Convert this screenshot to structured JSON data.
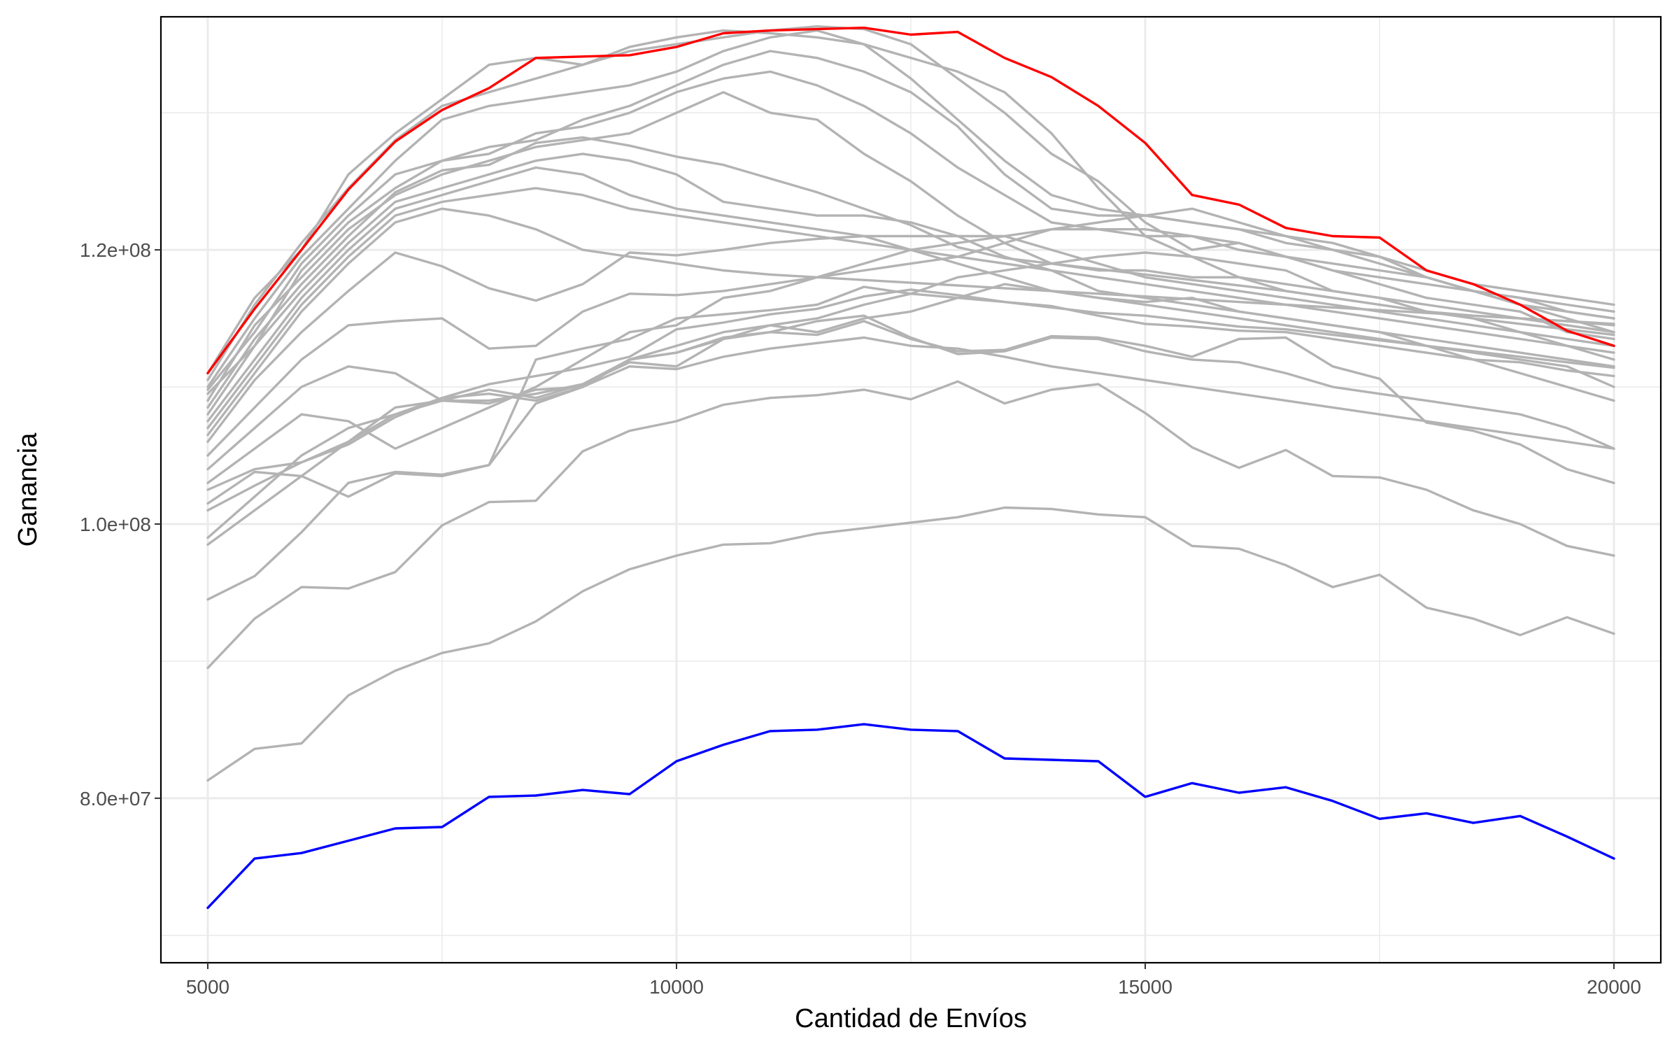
{
  "chart_data": {
    "type": "line",
    "title": "",
    "xlabel": "Cantidad de Envíos",
    "ylabel": "Ganancia",
    "xlim": [
      4500,
      20500
    ],
    "ylim": [
      68000000,
      137000000
    ],
    "x_ticks": [
      5000,
      10000,
      15000,
      20000
    ],
    "x_tick_labels": [
      "5000",
      "10000",
      "15000",
      "20000"
    ],
    "y_ticks": [
      80000000,
      100000000,
      120000000
    ],
    "y_tick_labels": [
      "8.0e+07",
      "1.0e+08",
      "1.2e+08"
    ],
    "y_minor_ticks": [
      70000000,
      90000000,
      110000000,
      130000000
    ],
    "grid": true,
    "legend": "none",
    "colors": {
      "background": "#ffffff",
      "grid": "#ebebeb",
      "frame": "#000000",
      "gray_series": "#b3b3b3",
      "best": "#ff0000",
      "worst": "#0000ff"
    },
    "x": [
      5000,
      5500,
      6000,
      6500,
      7000,
      7500,
      8000,
      8500,
      9000,
      9500,
      10000,
      10500,
      11000,
      11500,
      12000,
      12500,
      13000,
      13500,
      14000,
      14500,
      15000,
      15500,
      16000,
      16500,
      17000,
      17500,
      18000,
      18500,
      19000,
      19500,
      20000
    ],
    "series": [
      {
        "color": "#b3b3b3",
        "values": [
          111000000,
          116500000,
          120000000,
          125500000,
          128500000,
          131000000,
          133500000,
          134000000,
          133500000,
          134800000,
          135500000,
          136000000,
          135800000,
          135500000,
          135000000,
          134000000,
          133000000,
          131500000,
          128500000,
          124500000,
          121000000,
          119500000,
          118000000,
          117000000,
          116500000,
          116000000,
          115500000,
          115200000,
          115000000,
          114800000,
          114500000
        ]
      },
      {
        "color": "#b3b3b3",
        "values": [
          110500000,
          116000000,
          120500000,
          124500000,
          128000000,
          130500000,
          131500000,
          132500000,
          133500000,
          134500000,
          135000000,
          135500000,
          136000000,
          136300000,
          136100000,
          135000000,
          132500000,
          130000000,
          127000000,
          125000000,
          122000000,
          120000000,
          120500000,
          119500000,
          119000000,
          118500000,
          118000000,
          117000000,
          116000000,
          115500000,
          115000000
        ]
      },
      {
        "color": "#b3b3b3",
        "values": [
          110000000,
          115000000,
          119500000,
          123000000,
          126500000,
          129500000,
          130500000,
          131000000,
          131500000,
          132000000,
          133000000,
          134500000,
          135500000,
          136000000,
          135000000,
          132500000,
          129500000,
          126500000,
          124000000,
          123000000,
          122500000,
          122000000,
          121500000,
          121000000,
          120500000,
          119500000,
          118500000,
          117500000,
          117000000,
          116500000,
          116000000
        ]
      },
      {
        "color": "#b3b3b3",
        "values": [
          109800000,
          114000000,
          119000000,
          122500000,
          125500000,
          126500000,
          127500000,
          128000000,
          129500000,
          130500000,
          132000000,
          133500000,
          134500000,
          134000000,
          133000000,
          131500000,
          129000000,
          125500000,
          123000000,
          122500000,
          122500000,
          122000000,
          121500000,
          120500000,
          120000000,
          119000000,
          118000000,
          117000000,
          116000000,
          115000000,
          114000000
        ]
      },
      {
        "color": "#b3b3b3",
        "values": [
          109500000,
          113000000,
          118500000,
          122000000,
          124500000,
          126500000,
          127000000,
          128500000,
          129000000,
          130000000,
          131500000,
          132500000,
          133000000,
          132000000,
          130500000,
          128500000,
          126000000,
          124000000,
          122000000,
          121500000,
          121000000,
          121000000,
          120500000,
          119500000,
          118500000,
          118000000,
          117500000,
          117000000,
          116500000,
          116000000,
          115500000
        ]
      },
      {
        "color": "#b3b3b3",
        "values": [
          109000000,
          114500000,
          118000000,
          121500000,
          124000000,
          125500000,
          126500000,
          127500000,
          128000000,
          128500000,
          130000000,
          131500000,
          130000000,
          129500000,
          127000000,
          125000000,
          122500000,
          120500000,
          119000000,
          118500000,
          118500000,
          118000000,
          118000000,
          117500000,
          117000000,
          116500000,
          116000000,
          115500000,
          115000000,
          114500000,
          114000000
        ]
      },
      {
        "color": "#b3b3b3",
        "values": [
          108500000,
          113500000,
          117500000,
          121000000,
          124200000,
          125800000,
          126200000,
          127800000,
          128200000,
          127600000,
          126800000,
          126200000,
          125200000,
          124200000,
          123000000,
          121800000,
          120200000,
          119400000,
          119000000,
          118600000,
          118200000,
          117800000,
          117400000,
          117000000,
          116500000,
          116000000,
          115500000,
          115000000,
          114600000,
          114200000,
          113800000
        ]
      },
      {
        "color": "#b3b3b3",
        "values": [
          108000000,
          113000000,
          117000000,
          120500000,
          123500000,
          124500000,
          125500000,
          126500000,
          127000000,
          126500000,
          125500000,
          123500000,
          123000000,
          122500000,
          122500000,
          122000000,
          121000000,
          119500000,
          118500000,
          117000000,
          116500000,
          116000000,
          115500000,
          115000000,
          114500000,
          114000000,
          113500000,
          113000000,
          112500000,
          112000000,
          111500000
        ]
      },
      {
        "color": "#b3b3b3",
        "values": [
          107500000,
          112000000,
          116500000,
          120000000,
          123000000,
          124000000,
          125000000,
          126000000,
          125500000,
          124000000,
          123000000,
          122500000,
          122000000,
          121500000,
          121000000,
          120000000,
          119000000,
          118000000,
          117000000,
          116500000,
          116000000,
          115500000,
          115000000,
          114500000,
          114000000,
          113500000,
          113000000,
          112500000,
          112000000,
          111500000,
          110000000
        ]
      },
      {
        "color": "#b3b3b3",
        "values": [
          107000000,
          111500000,
          116000000,
          119500000,
          122500000,
          123500000,
          124000000,
          124500000,
          124000000,
          123000000,
          122500000,
          122000000,
          121500000,
          121000000,
          120500000,
          120000000,
          119500000,
          119000000,
          118500000,
          118000000,
          117500000,
          117000000,
          116500000,
          116000000,
          115500000,
          115000000,
          114500000,
          114000000,
          113500000,
          113000000,
          112500000
        ]
      },
      {
        "color": "#b3b3b3",
        "values": [
          106500000,
          111000000,
          115500000,
          119000000,
          122000000,
          123000000,
          122500000,
          121500000,
          120000000,
          119500000,
          119000000,
          118500000,
          118200000,
          118000000,
          117800000,
          117600000,
          117400000,
          117200000,
          117000000,
          116800000,
          116600000,
          116400000,
          116200000,
          116000000,
          115800000,
          115600000,
          115400000,
          115200000,
          115000000,
          114800000,
          114600000
        ]
      },
      {
        "color": "#b3b3b3",
        "values": [
          106000000,
          110500000,
          114000000,
          117000000,
          119800000,
          118800000,
          117200000,
          116300000,
          117500000,
          119800000,
          119600000,
          120000000,
          120500000,
          120800000,
          121000000,
          121000000,
          121000000,
          121000000,
          120000000,
          119000000,
          118000000,
          117500000,
          117000000,
          116500000,
          116000000,
          115500000,
          115000000,
          114500000,
          114000000,
          113500000,
          113000000
        ]
      },
      {
        "color": "#b3b3b3",
        "values": [
          105000000,
          108500000,
          112000000,
          114500000,
          114800000,
          115000000,
          112800000,
          113000000,
          115500000,
          116800000,
          116700000,
          117000000,
          117500000,
          118000000,
          118500000,
          119000000,
          119500000,
          120500000,
          121500000,
          122000000,
          122500000,
          123000000,
          122000000,
          121000000,
          120000000,
          119500000,
          118000000,
          117000000,
          116500000,
          115500000,
          115000000
        ]
      },
      {
        "color": "#b3b3b3",
        "values": [
          104000000,
          107000000,
          110000000,
          111500000,
          111000000,
          109000000,
          109800000,
          109200000,
          110200000,
          111800000,
          111500000,
          113500000,
          114500000,
          115000000,
          116000000,
          116800000,
          118000000,
          118500000,
          119000000,
          119500000,
          119800000,
          119500000,
          119000000,
          118500000,
          117000000,
          116500000,
          115500000,
          115000000,
          114000000,
          113000000,
          112000000
        ]
      },
      {
        "color": "#b3b3b3",
        "values": [
          103000000,
          105500000,
          108000000,
          107500000,
          105500000,
          107000000,
          108500000,
          110000000,
          112000000,
          114000000,
          114500000,
          116500000,
          117000000,
          118000000,
          119000000,
          120000000,
          120500000,
          121000000,
          121500000,
          121500000,
          121500000,
          121000000,
          120000000,
          119500000,
          118500000,
          117500000,
          116500000,
          116000000,
          115500000,
          114000000,
          113500000
        ]
      },
      {
        "color": "#b3b3b3",
        "values": [
          102500000,
          104000000,
          104500000,
          106000000,
          108000000,
          109000000,
          109000000,
          109500000,
          110200000,
          112000000,
          113000000,
          114000000,
          114500000,
          114000000,
          115000000,
          115500000,
          116500000,
          117500000,
          117000000,
          116500000,
          116200000,
          116500000,
          115500000,
          115000000,
          114500000,
          114000000,
          113000000,
          112000000,
          111000000,
          110000000,
          109000000
        ]
      },
      {
        "color": "#b3b3b3",
        "values": [
          101500000,
          103800000,
          103500000,
          102000000,
          103700000,
          103500000,
          104300000,
          112000000,
          112800000,
          113500000,
          115000000,
          115300000,
          115600000,
          116000000,
          117300000,
          116800000,
          116500000,
          116200000,
          115800000,
          115400000,
          115200000,
          114800000,
          114400000,
          114200000,
          113800000,
          113400000,
          113000000,
          112600000,
          112200000,
          111800000,
          111400000
        ]
      },
      {
        "color": "#b3b3b3",
        "values": [
          101000000,
          102800000,
          104500000,
          105800000,
          107800000,
          109200000,
          110200000,
          110800000,
          111400000,
          112200000,
          114200000,
          114700000,
          115300000,
          115700000,
          116600000,
          117100000,
          116700000,
          116200000,
          115900000,
          115200000,
          114600000,
          114400000,
          114100000,
          114000000,
          113500000,
          113000000,
          112500000,
          112000000,
          111800000,
          111200000,
          110800000
        ]
      },
      {
        "color": "#b3b3b3",
        "values": [
          99000000,
          102000000,
          105000000,
          107000000,
          108000000,
          109200000,
          109500000,
          109000000,
          110000000,
          112000000,
          112500000,
          113500000,
          114000000,
          113800000,
          114800000,
          113500000,
          112600000,
          112700000,
          113700000,
          113600000,
          113000000,
          112200000,
          113500000,
          113600000,
          111500000,
          110600000,
          107400000,
          106800000,
          105800000,
          104000000,
          103000000
        ]
      },
      {
        "color": "#b3b3b3",
        "values": [
          98500000,
          101000000,
          103500000,
          106000000,
          108500000,
          109000000,
          108800000,
          109800000,
          110000000,
          111500000,
          111300000,
          112200000,
          112800000,
          113200000,
          113600000,
          113000000,
          112800000,
          112200000,
          111500000,
          111000000,
          110500000,
          110000000,
          109500000,
          109000000,
          108500000,
          108000000,
          107500000,
          107000000,
          106500000,
          106000000,
          105500000
        ]
      },
      {
        "color": "#b3b3b3",
        "values": [
          94500000,
          96200000,
          99400000,
          103000000,
          103800000,
          103600000,
          104300000,
          108800000,
          110000000,
          112000000,
          112500000,
          113600000,
          114000000,
          114800000,
          115200000,
          113600000,
          112400000,
          112600000,
          113600000,
          113500000,
          112600000,
          112000000,
          111800000,
          111000000,
          110000000,
          109500000,
          109000000,
          108500000,
          108000000,
          107000000,
          105500000
        ]
      },
      {
        "color": "#b3b3b3",
        "values": [
          89500000,
          93100000,
          95400000,
          95300000,
          96500000,
          99900000,
          101600000,
          101700000,
          105300000,
          106800000,
          107500000,
          108700000,
          109200000,
          109400000,
          109800000,
          109100000,
          110400000,
          108800000,
          109800000,
          110200000,
          108100000,
          105600000,
          104100000,
          105400000,
          103500000,
          103400000,
          102500000,
          101000000,
          100000000,
          98400000,
          97700000
        ]
      },
      {
        "color": "#b3b3b3",
        "values": [
          81300000,
          83600000,
          84000000,
          87500000,
          89300000,
          90600000,
          91300000,
          92900000,
          95100000,
          96700000,
          97700000,
          98500000,
          98600000,
          99300000,
          99700000,
          100100000,
          100500000,
          101200000,
          101100000,
          100700000,
          100500000,
          98400000,
          98200000,
          97000000,
          95400000,
          96300000,
          93900000,
          93100000,
          91900000,
          93200000,
          92000000
        ]
      },
      {
        "color": "#ff0000",
        "values": [
          111000000,
          115700000,
          120000000,
          124400000,
          127900000,
          130200000,
          131800000,
          134000000,
          134100000,
          134200000,
          134800000,
          135800000,
          136000000,
          136100000,
          136200000,
          135700000,
          135900000,
          134000000,
          132600000,
          130500000,
          127800000,
          124000000,
          123300000,
          121600000,
          121000000,
          120900000,
          118500000,
          117500000,
          116000000,
          114100000,
          113000000
        ]
      },
      {
        "color": "#0000ff",
        "values": [
          72000000,
          75600000,
          76000000,
          76900000,
          77800000,
          77900000,
          80100000,
          80200000,
          80600000,
          80300000,
          82700000,
          83900000,
          84900000,
          85000000,
          85400000,
          85000000,
          84900000,
          82900000,
          82800000,
          82700000,
          80100000,
          81100000,
          80400000,
          80800000,
          79800000,
          78500000,
          78900000,
          78200000,
          78700000,
          77200000,
          75600000
        ]
      }
    ]
  }
}
